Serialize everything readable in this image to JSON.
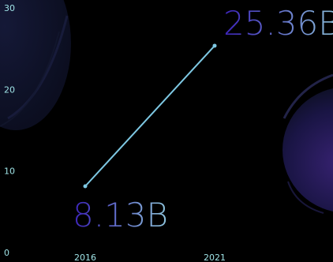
{
  "chart_data": {
    "type": "line",
    "title": "",
    "xlabel": "",
    "ylabel": "",
    "x": [
      "2016",
      "2021"
    ],
    "series": [
      {
        "values": [
          8.13,
          25.36
        ]
      }
    ],
    "point_labels": [
      "8.13B",
      "25.36B"
    ],
    "yticks": [
      "0",
      "10",
      "20",
      "30"
    ],
    "ylim": [
      0,
      30
    ],
    "grid": false,
    "legend": "none"
  },
  "colors": {
    "background": "#000000",
    "line": "#7ec8e3",
    "tick_text": "#9fe3e6",
    "label_gradient_start": "#3b22b8",
    "label_gradient_end": "#8ec5dc",
    "blob_dark": "#0f1128",
    "blob_purple": "#3a2478"
  }
}
